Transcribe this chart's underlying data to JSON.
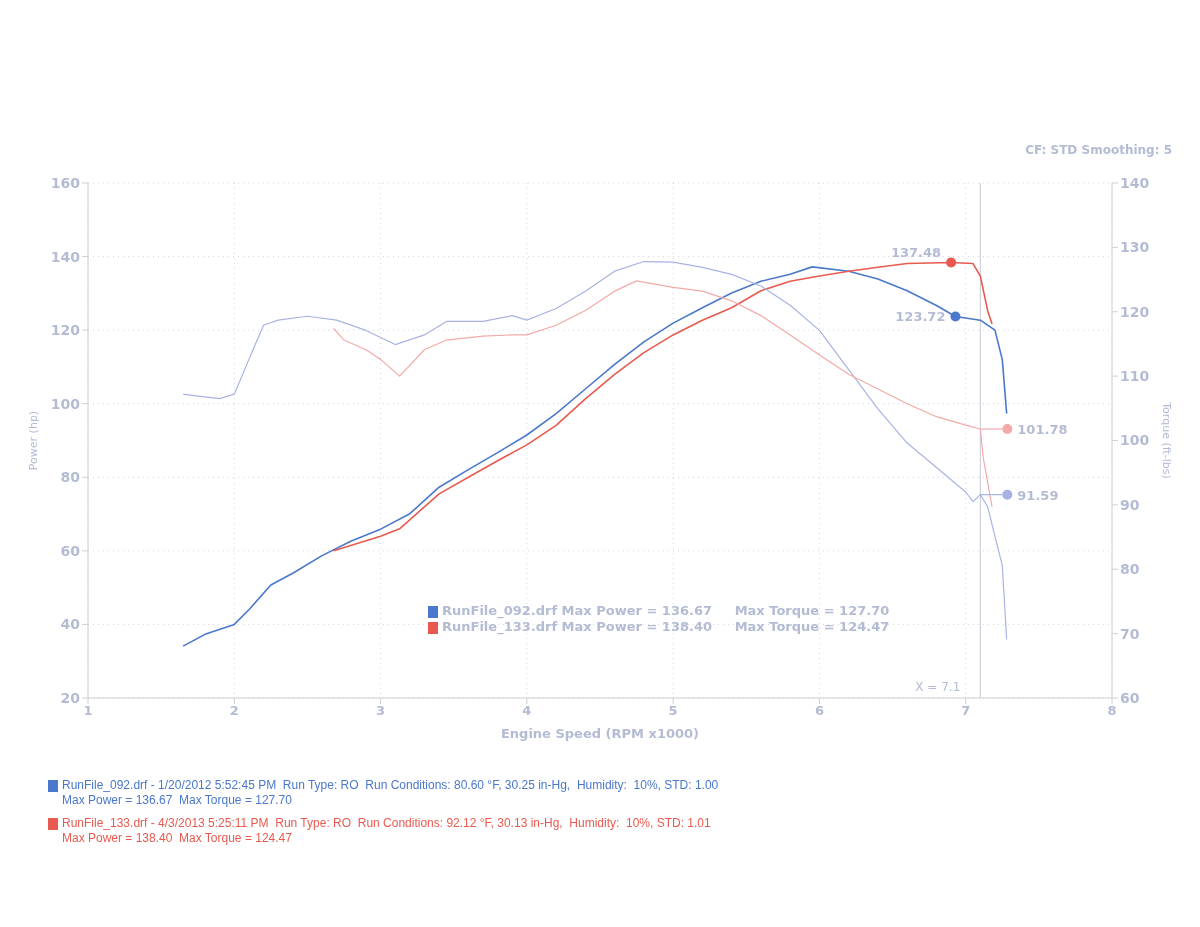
{
  "chart_data": {
    "type": "line",
    "xlabel": "Engine Speed (RPM x1000)",
    "ylabel": "Power (hp)",
    "y2label": "Torque (ft-lbs)",
    "xlim": [
      1,
      8
    ],
    "xticks": [
      1,
      2,
      3,
      4,
      5,
      6,
      7,
      8
    ],
    "ylim": [
      20,
      160
    ],
    "yticks": [
      20,
      40,
      60,
      80,
      100,
      120,
      140,
      160
    ],
    "y2lim": [
      60,
      140
    ],
    "y2ticks": [
      60,
      70,
      80,
      90,
      100,
      110,
      120,
      130,
      140
    ],
    "grid": true,
    "marker": "none",
    "line_style": "solid",
    "series": [
      {
        "color": "#4a78cc",
        "x": [
          1.65,
          1.8,
          2.0,
          2.1,
          2.25,
          2.4,
          2.6,
          2.8,
          3.0,
          3.2,
          3.4,
          3.6,
          3.8,
          4.0,
          4.2,
          4.4,
          4.6,
          4.8,
          5.0,
          5.2,
          5.4,
          5.6,
          5.8,
          5.95,
          6.2,
          6.4,
          6.6,
          6.8,
          6.93,
          7.1,
          7.2,
          7.25,
          7.28
        ],
        "values": [
          34.1,
          37.3,
          40,
          44,
          50.7,
          53.9,
          58.7,
          62.7,
          65.9,
          70.1,
          77.3,
          82.1,
          86.7,
          91.5,
          97.3,
          104,
          110.7,
          116.8,
          121.9,
          126.1,
          130.1,
          133.3,
          135.2,
          137.2,
          136,
          133.9,
          130.7,
          126.7,
          123.72,
          122.7,
          120,
          112,
          97.3
        ]
      },
      {
        "color": "#e85a50",
        "x": [
          2.68,
          3.0,
          3.13,
          3.4,
          3.6,
          3.8,
          4.0,
          4.2,
          4.4,
          4.6,
          4.8,
          5.0,
          5.2,
          5.4,
          5.6,
          5.8,
          6.0,
          6.2,
          6.4,
          6.6,
          6.9,
          7.05,
          7.1,
          7.15,
          7.18
        ],
        "values": [
          60,
          64,
          66,
          75.5,
          80,
          84.5,
          88.8,
          94.1,
          101.3,
          108,
          113.9,
          118.7,
          122.7,
          126.1,
          130.7,
          133.3,
          134.7,
          136,
          137.1,
          138.1,
          138.4,
          138.1,
          134.7,
          125.3,
          121.7
        ]
      },
      {
        "color": "#a9b3e3",
        "axis": "y2",
        "x": [
          1.65,
          1.75,
          1.9,
          2.0,
          2.1,
          2.2,
          2.3,
          2.5,
          2.7,
          2.9,
          3.1,
          3.3,
          3.45,
          3.7,
          3.9,
          4.0,
          4.2,
          4.4,
          4.6,
          4.8,
          5.0,
          5.2,
          5.4,
          5.6,
          5.8,
          6.0,
          6.2,
          6.4,
          6.6,
          6.8,
          7.0,
          7.05,
          7.1,
          7.15,
          7.2,
          7.25,
          7.28
        ],
        "values": [
          107.2,
          106.9,
          106.5,
          107.2,
          112.6,
          117.9,
          118.7,
          119.3,
          118.7,
          117.1,
          114.9,
          116.4,
          118.5,
          118.5,
          119.4,
          118.7,
          120.5,
          123.2,
          126.3,
          127.8,
          127.7,
          126.9,
          125.8,
          124,
          121,
          117.1,
          111,
          104.9,
          99.6,
          95.8,
          92,
          90.5,
          91.59,
          89.7,
          85.1,
          80.6,
          69.1
        ]
      },
      {
        "color": "#f2aaa8",
        "axis": "y2",
        "x": [
          2.68,
          2.75,
          2.9,
          3.0,
          3.13,
          3.3,
          3.45,
          3.7,
          3.9,
          4.0,
          4.2,
          4.4,
          4.6,
          4.75,
          5.0,
          5.2,
          5.4,
          5.6,
          5.8,
          6.0,
          6.2,
          6.4,
          6.6,
          6.8,
          7.0,
          7.1,
          7.12,
          7.18
        ],
        "values": [
          117.4,
          115.6,
          114.1,
          112.6,
          110,
          114.1,
          115.6,
          116.2,
          116.4,
          116.4,
          117.9,
          120.2,
          123.2,
          124.8,
          123.8,
          123.2,
          121.7,
          119.4,
          116.4,
          113.3,
          110.3,
          108,
          105.7,
          103.7,
          102.4,
          101.78,
          97.3,
          89.7
        ]
      }
    ],
    "ref_lines": [
      {
        "axis": "x",
        "value": 7.1,
        "label": "X = 7.1",
        "color": "#c8c8d4"
      }
    ],
    "annotations": [
      "CF: STD  Smoothing: 5",
      "RunFile_092.drf Max Power = 136.67     Max Torque = 127.70",
      "RunFile_133.drf Max Power = 138.40     Max Torque = 124.47",
      "RunFile_092.drf - 1/20/2012 5:52:45 PM  Run Type: RO  Run Conditions: 80.60 °F, 30.25 in-Hg,  Humidity:  10%, STD: 1.00",
      "Max Power = 136.67  Max Torque = 127.70",
      "RunFile_133.drf - 4/3/2013 5:25:11 PM  Run Type: RO  Run Conditions: 92.12 °F, 30.13 in-Hg,  Humidity:  10%, STD: 1.01",
      "Max Power = 138.40  Max Torque = 124.47",
      {
        "text": "137.48",
        "x": 6.9,
        "y": 138.4
      },
      {
        "text": "123.72",
        "x": 6.93,
        "y": 123.72
      },
      "101.78",
      "91.59"
    ]
  }
}
